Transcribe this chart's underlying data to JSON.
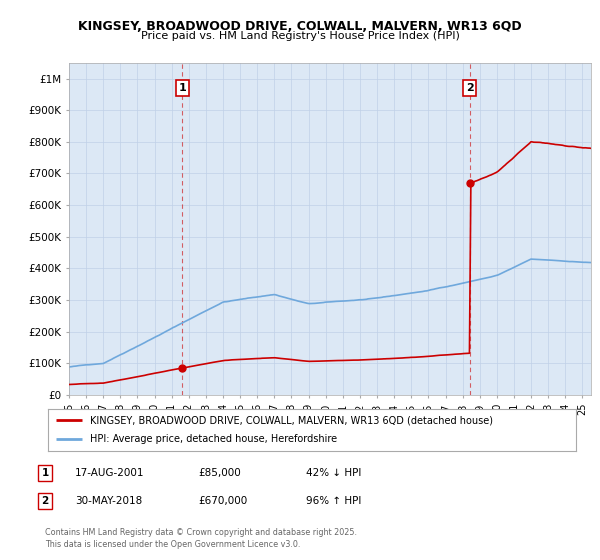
{
  "title": "KINGSEY, BROADWOOD DRIVE, COLWALL, MALVERN, WR13 6QD",
  "subtitle": "Price paid vs. HM Land Registry's House Price Index (HPI)",
  "ylim": [
    0,
    1050000
  ],
  "yticks": [
    0,
    100000,
    200000,
    300000,
    400000,
    500000,
    600000,
    700000,
    800000,
    900000,
    1000000
  ],
  "ytick_labels": [
    "£0",
    "£100K",
    "£200K",
    "£300K",
    "£400K",
    "£500K",
    "£600K",
    "£700K",
    "£800K",
    "£900K",
    "£1M"
  ],
  "property_color": "#cc0000",
  "hpi_color": "#6fa8dc",
  "chart_bg": "#dce8f5",
  "sale1_year": 2001.63,
  "sale1_price": 85000,
  "sale2_year": 2018.41,
  "sale2_price": 670000,
  "legend_property": "KINGSEY, BROADWOOD DRIVE, COLWALL, MALVERN, WR13 6QD (detached house)",
  "legend_hpi": "HPI: Average price, detached house, Herefordshire",
  "footnote": "Contains HM Land Registry data © Crown copyright and database right 2025.\nThis data is licensed under the Open Government Licence v3.0.",
  "table_rows": [
    {
      "num": "1",
      "date": "17-AUG-2001",
      "price": "£85,000",
      "hpi": "42% ↓ HPI"
    },
    {
      "num": "2",
      "date": "30-MAY-2018",
      "price": "£670,000",
      "hpi": "96% ↑ HPI"
    }
  ],
  "background_color": "#ffffff",
  "grid_color": "#c0d0e8"
}
